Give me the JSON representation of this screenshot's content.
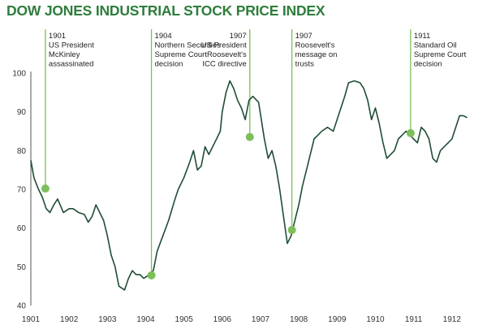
{
  "chart_data": {
    "type": "line",
    "title": "DOW JONES INDUSTRIAL STOCK PRICE INDEX",
    "xlabel": "",
    "ylabel": "",
    "xlim": [
      1901,
      1912.45
    ],
    "ylim": [
      40,
      100
    ],
    "yticks": [
      "40",
      "50",
      "60",
      "70",
      "80",
      "90",
      "100"
    ],
    "xticks": [
      "1901",
      "1902",
      "1903",
      "1904",
      "1905",
      "1906",
      "1907",
      "1908",
      "1909",
      "1910",
      "1911",
      "1912"
    ],
    "grid": false,
    "line_color": "#1f4d35",
    "marker_color": "#7cbf5a",
    "series": [
      {
        "x": [
          1901.0,
          1901.08,
          1901.2,
          1901.3,
          1901.4,
          1901.5,
          1901.6,
          1901.7,
          1901.85,
          1902.0,
          1902.1,
          1902.25,
          1902.4,
          1902.5,
          1902.6,
          1902.7,
          1902.8,
          1902.9,
          1903.0,
          1903.1,
          1903.2,
          1903.3,
          1903.45,
          1903.55,
          1903.65,
          1903.75,
          1903.85,
          1903.95,
          1904.1,
          1904.2,
          1904.3,
          1904.45,
          1904.6,
          1904.75,
          1904.85,
          1905.0,
          1905.15,
          1905.25,
          1905.35,
          1905.45,
          1905.55,
          1905.65,
          1905.8,
          1905.95,
          1906.0,
          1906.1,
          1906.2,
          1906.3,
          1906.4,
          1906.5,
          1906.6,
          1906.7,
          1906.8,
          1906.95,
          1907.1,
          1907.2,
          1907.3,
          1907.4,
          1907.5,
          1907.6,
          1907.7,
          1907.8,
          1907.9,
          1908.0,
          1908.1,
          1908.2,
          1908.3,
          1908.4,
          1908.5,
          1908.6,
          1908.75,
          1908.9,
          1909.0,
          1909.1,
          1909.2,
          1909.3,
          1909.45,
          1909.6,
          1909.7,
          1909.8,
          1909.9,
          1910.0,
          1910.1,
          1910.2,
          1910.3,
          1910.4,
          1910.5,
          1910.6,
          1910.7,
          1910.8,
          1910.9,
          1911.0,
          1911.1,
          1911.2,
          1911.3,
          1911.4,
          1911.5,
          1911.6,
          1911.7,
          1911.8,
          1911.9,
          1912.0,
          1912.1,
          1912.2,
          1912.3,
          1912.4
        ],
        "y": [
          77.5,
          73,
          70,
          68,
          65,
          64,
          66,
          67.5,
          64,
          65,
          65,
          64,
          63.5,
          61.5,
          63,
          66,
          64,
          62,
          58,
          53,
          50,
          45,
          44,
          47,
          49,
          48,
          48,
          47,
          48,
          49,
          54,
          58,
          62,
          67,
          70,
          73,
          77,
          80,
          75,
          76,
          81,
          79,
          82,
          85,
          90,
          95,
          98,
          96,
          93,
          91,
          88,
          93,
          94,
          92.5,
          83,
          78,
          80,
          76,
          70,
          63,
          56,
          58,
          62,
          66,
          71,
          75,
          79,
          83,
          84,
          85,
          86,
          85,
          88,
          91,
          94,
          97.5,
          98,
          97.5,
          96,
          93,
          88,
          91,
          87,
          82,
          78,
          79,
          80,
          83,
          84,
          85,
          84,
          83,
          82,
          86,
          85,
          83,
          78,
          77,
          80,
          81,
          82,
          83,
          86,
          89,
          89,
          88.5
        ]
      }
    ],
    "annotations": [
      {
        "year": "1901",
        "lines": [
          "US President",
          "McKinley",
          "assassinated"
        ],
        "x": 1901.38,
        "y": 70.2,
        "align": "start"
      },
      {
        "year": "1904",
        "lines": [
          "Northern Securities",
          "Supreme Court",
          "decision"
        ],
        "x": 1904.15,
        "y": 47.8,
        "align": "start"
      },
      {
        "year": "1907",
        "lines": [
          "US President",
          "Roosevelt's",
          "ICC directive"
        ],
        "x": 1906.72,
        "y": 83.5,
        "align": "end"
      },
      {
        "year": "1907",
        "lines": [
          "Roosevelt's",
          "message on",
          "trusts"
        ],
        "x": 1907.82,
        "y": 59.5,
        "align": "start"
      },
      {
        "year": "1911",
        "lines": [
          "Standard Oil",
          "Supreme Court",
          "decision"
        ],
        "x": 1910.92,
        "y": 84.5,
        "align": "start"
      }
    ]
  }
}
